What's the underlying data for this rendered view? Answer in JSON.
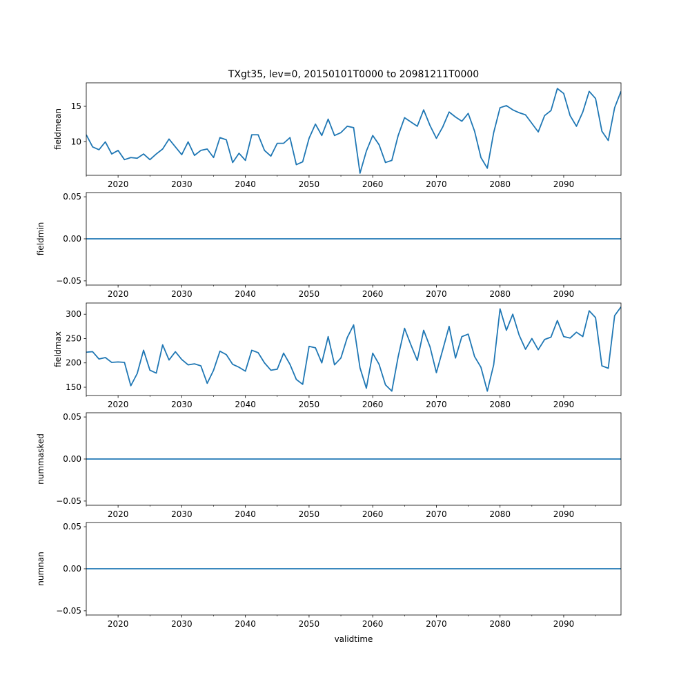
{
  "chart_data": {
    "type": "line",
    "title": "TXgt35, lev=0, 20150101T0000 to 20981211T0000",
    "xlabel": "validtime",
    "xlim": [
      2015,
      2099
    ],
    "x_ticks": [
      2020,
      2030,
      2040,
      2050,
      2060,
      2070,
      2080,
      2090
    ],
    "x_tick_labels": [
      "2020",
      "2030",
      "2040",
      "2050",
      "2060",
      "2070",
      "2080",
      "2090"
    ],
    "x": [
      2015,
      2016,
      2017,
      2018,
      2019,
      2020,
      2021,
      2022,
      2023,
      2024,
      2025,
      2026,
      2027,
      2028,
      2029,
      2030,
      2031,
      2032,
      2033,
      2034,
      2035,
      2036,
      2037,
      2038,
      2039,
      2040,
      2041,
      2042,
      2043,
      2044,
      2045,
      2046,
      2047,
      2048,
      2049,
      2050,
      2051,
      2052,
      2053,
      2054,
      2055,
      2056,
      2057,
      2058,
      2059,
      2060,
      2061,
      2062,
      2063,
      2064,
      2065,
      2066,
      2067,
      2068,
      2069,
      2070,
      2071,
      2072,
      2073,
      2074,
      2075,
      2076,
      2077,
      2078,
      2079,
      2080,
      2081,
      2082,
      2083,
      2084,
      2085,
      2086,
      2087,
      2088,
      2089,
      2090,
      2091,
      2092,
      2093,
      2094,
      2095,
      2096,
      2097,
      2098,
      2099
    ],
    "color": "#1f77b4",
    "panels": [
      {
        "name": "fieldmean",
        "ylabel": "fieldmean",
        "ylim": [
          5.3,
          18.3
        ],
        "y_ticks": [
          10,
          15
        ],
        "y_tick_labels": [
          "10",
          "15"
        ],
        "values": [
          11.0,
          9.3,
          8.9,
          10.0,
          8.3,
          8.8,
          7.5,
          7.8,
          7.7,
          8.3,
          7.5,
          8.3,
          9.0,
          10.4,
          9.3,
          8.2,
          10.0,
          8.1,
          8.8,
          9.0,
          7.8,
          10.6,
          10.3,
          7.1,
          8.4,
          7.4,
          11.0,
          11.0,
          8.8,
          8.0,
          9.8,
          9.8,
          10.6,
          6.8,
          7.2,
          10.5,
          12.5,
          10.9,
          13.2,
          10.9,
          11.3,
          12.2,
          12.0,
          5.6,
          8.7,
          10.9,
          9.6,
          7.1,
          7.4,
          10.9,
          13.4,
          12.8,
          12.2,
          14.5,
          12.3,
          10.5,
          12.1,
          14.2,
          13.5,
          12.9,
          14.0,
          11.5,
          7.8,
          6.3,
          11.3,
          14.8,
          15.1,
          14.5,
          14.1,
          13.8,
          12.6,
          11.4,
          13.7,
          14.4,
          17.5,
          16.8,
          13.7,
          12.2,
          14.2,
          17.1,
          16.1,
          11.5,
          10.2,
          14.8,
          17.1
        ]
      },
      {
        "name": "fieldmin",
        "ylabel": "fieldmin",
        "ylim": [
          -0.055,
          0.055
        ],
        "y_ticks": [
          -0.05,
          0,
          0.05
        ],
        "y_tick_labels": [
          "−0.05",
          "0.00",
          "0.05"
        ],
        "constant": 0
      },
      {
        "name": "fieldmax",
        "ylabel": "fieldmax",
        "ylim": [
          133,
          323
        ],
        "y_ticks": [
          150,
          200,
          250,
          300
        ],
        "y_tick_labels": [
          "150",
          "200",
          "250",
          "300"
        ],
        "values": [
          222,
          223,
          208,
          211,
          201,
          202,
          201,
          153,
          178,
          226,
          185,
          179,
          237,
          206,
          223,
          207,
          196,
          198,
          194,
          158,
          185,
          224,
          217,
          197,
          191,
          183,
          226,
          221,
          200,
          185,
          187,
          220,
          197,
          166,
          156,
          234,
          231,
          200,
          254,
          196,
          210,
          252,
          278,
          190,
          148,
          220,
          197,
          155,
          142,
          213,
          271,
          237,
          205,
          267,
          233,
          180,
          227,
          275,
          210,
          254,
          259,
          213,
          191,
          142,
          196,
          311,
          267,
          300,
          257,
          228,
          250,
          227,
          248,
          253,
          287,
          254,
          251,
          263,
          254,
          307,
          293,
          194,
          189,
          297,
          315
        ]
      },
      {
        "name": "nummasked",
        "ylabel": "nummasked",
        "ylim": [
          -0.055,
          0.055
        ],
        "y_ticks": [
          -0.05,
          0,
          0.05
        ],
        "y_tick_labels": [
          "−0.05",
          "0.00",
          "0.05"
        ],
        "constant": 0
      },
      {
        "name": "numnan",
        "ylabel": "numnan",
        "ylim": [
          -0.055,
          0.055
        ],
        "y_ticks": [
          -0.05,
          0,
          0.05
        ],
        "y_tick_labels": [
          "−0.05",
          "0.00",
          "0.05"
        ],
        "constant": 0
      }
    ]
  }
}
